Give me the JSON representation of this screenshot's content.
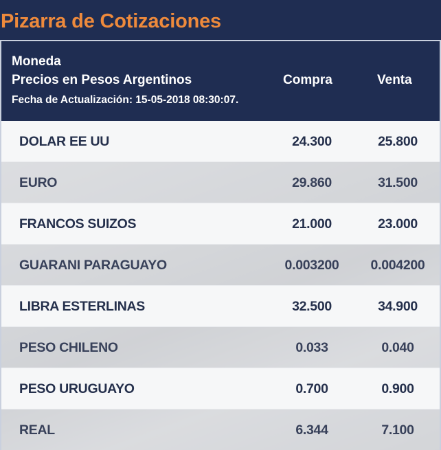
{
  "page": {
    "title": "Pizarra de Cotizaciones"
  },
  "colors": {
    "header_bg": "#1f2d52",
    "title_accent": "#ee8a3c",
    "text_dark": "#25304c"
  },
  "table": {
    "header": {
      "moneda": "Moneda",
      "precios": "Precios en Pesos Argentinos",
      "fecha": "Fecha de Actualización: 15-05-2018 08:30:07.",
      "compra": "Compra",
      "venta": "Venta"
    },
    "rows": [
      {
        "moneda": "DOLAR EE UU",
        "compra": "24.300",
        "venta": "25.800"
      },
      {
        "moneda": "EURO",
        "compra": "29.860",
        "venta": "31.500"
      },
      {
        "moneda": "FRANCOS SUIZOS",
        "compra": "21.000",
        "venta": "23.000"
      },
      {
        "moneda": "GUARANI PARAGUAYO",
        "compra": "0.003200",
        "venta": "0.004200"
      },
      {
        "moneda": "LIBRA ESTERLINAS",
        "compra": "32.500",
        "venta": "34.900"
      },
      {
        "moneda": "PESO CHILENO",
        "compra": "0.033",
        "venta": "0.040"
      },
      {
        "moneda": "PESO URUGUAYO",
        "compra": "0.700",
        "venta": "0.900"
      },
      {
        "moneda": "REAL",
        "compra": "6.344",
        "venta": "7.100"
      }
    ]
  }
}
